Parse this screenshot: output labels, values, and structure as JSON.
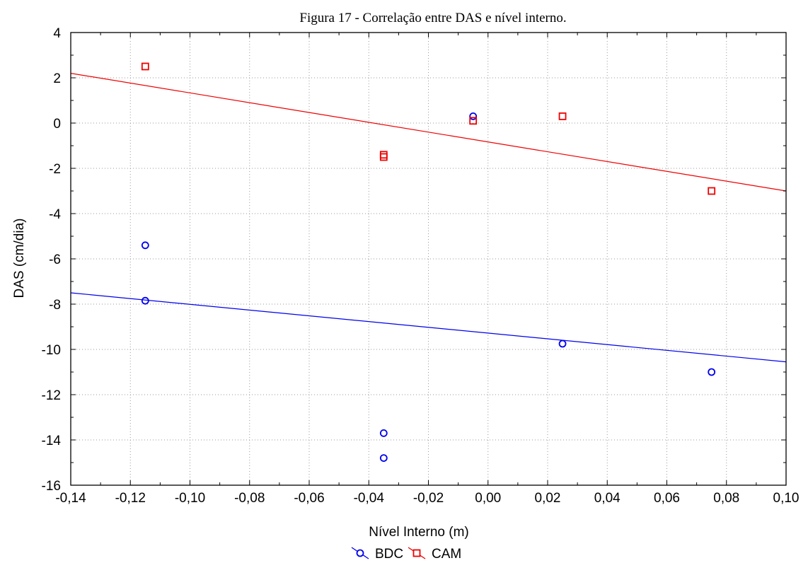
{
  "chart_data": {
    "type": "scatter",
    "title": "Figura 17 - Correlação entre DAS e nível interno.",
    "xlabel": "Nível Interno (m)",
    "ylabel": "DAS (cm/dia)",
    "xlim": [
      -0.14,
      0.1
    ],
    "ylim": [
      -16,
      4
    ],
    "x_ticks": [
      -0.14,
      -0.12,
      -0.1,
      -0.08,
      -0.06,
      -0.04,
      -0.02,
      0.0,
      0.02,
      0.04,
      0.06,
      0.08,
      0.1
    ],
    "x_tick_labels": [
      "-0,14",
      "-0,12",
      "-0,10",
      "-0,08",
      "-0,06",
      "-0,04",
      "-0,02",
      "0,00",
      "0,02",
      "0,04",
      "0,06",
      "0,08",
      "0,10"
    ],
    "y_ticks": [
      4,
      2,
      0,
      -2,
      -4,
      -6,
      -8,
      -10,
      -12,
      -14,
      -16
    ],
    "y_tick_labels": [
      "4",
      "2",
      "0",
      "-2",
      "-4",
      "-6",
      "-8",
      "-10",
      "-12",
      "-14",
      "-16"
    ],
    "grid": true,
    "legend_position": "bottom-center",
    "series": [
      {
        "name": "BDC",
        "color": "#0000ee",
        "marker": "circle",
        "x": [
          -0.115,
          -0.115,
          -0.035,
          -0.035,
          -0.005,
          0.025,
          0.075
        ],
        "y": [
          -5.4,
          -7.85,
          -13.7,
          -14.8,
          0.3,
          -9.75,
          -11.0
        ],
        "fit": {
          "x": [
            -0.14,
            0.1
          ],
          "y": [
            -7.5,
            -10.55
          ]
        }
      },
      {
        "name": "CAM",
        "color": "#ee0000",
        "marker": "square",
        "x": [
          -0.115,
          -0.035,
          -0.035,
          -0.005,
          0.025,
          0.075
        ],
        "y": [
          2.5,
          -1.4,
          -1.5,
          0.1,
          0.3,
          -3.0
        ],
        "fit": {
          "x": [
            -0.14,
            0.1
          ],
          "y": [
            2.2,
            -3.0
          ]
        }
      }
    ]
  }
}
